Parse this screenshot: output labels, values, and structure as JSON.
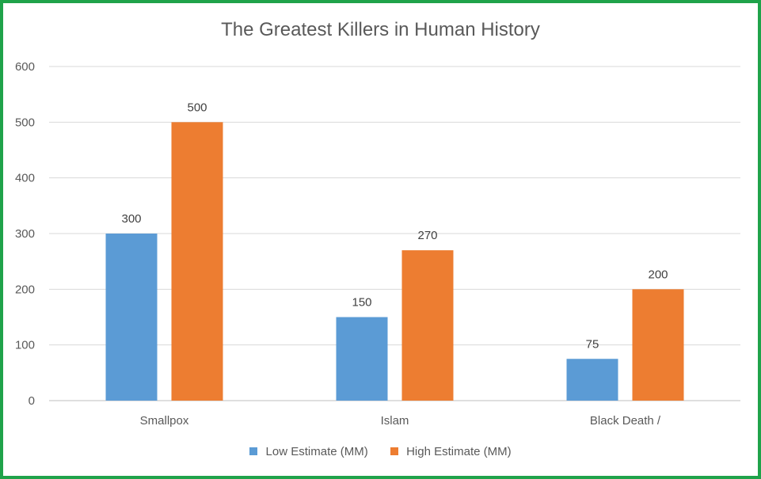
{
  "chart_data": {
    "type": "bar",
    "title": "The Greatest Killers in Human History",
    "categories": [
      "Smallpox",
      "Islam",
      "Black Death /"
    ],
    "series": [
      {
        "name": "Low Estimate (MM)",
        "values": [
          300,
          150,
          75
        ],
        "color": "#5b9bd5"
      },
      {
        "name": "High Estimate (MM)",
        "values": [
          500,
          270,
          200
        ],
        "color": "#ed7d31"
      }
    ],
    "ylim": [
      0,
      600
    ],
    "yticks": [
      0,
      100,
      200,
      300,
      400,
      500,
      600
    ],
    "grid": true,
    "legend": "bottom"
  },
  "colors": {
    "border": "#1fa34a",
    "gridline": "#d9d9d9"
  }
}
